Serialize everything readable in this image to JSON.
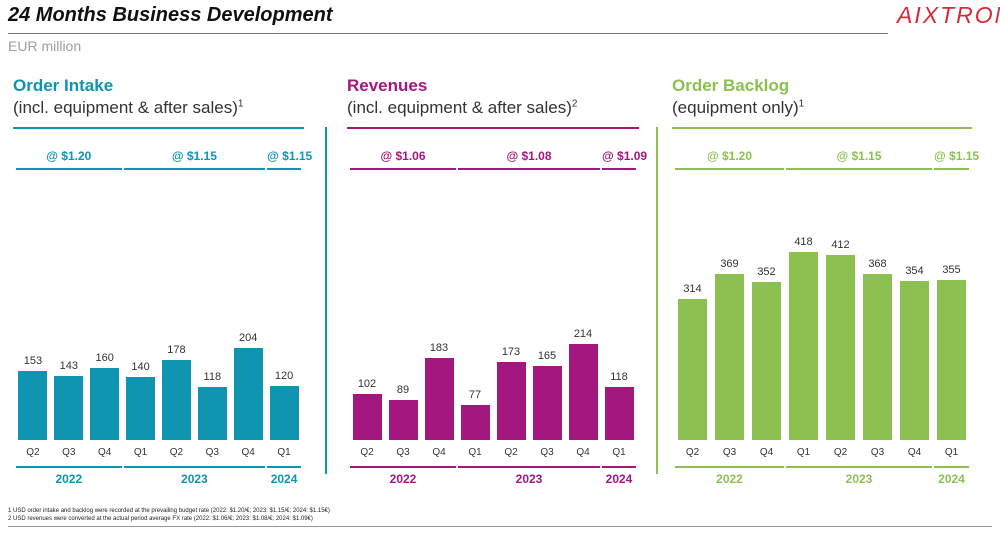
{
  "header": {
    "title": "24 Months Business Development",
    "subtitle": "EUR million",
    "logo_text": "AIXTRON"
  },
  "colors": {
    "order_intake": "#0f94b1",
    "revenues": "#a3177e",
    "order_backlog": "#8cc152",
    "logo": "#d9283a"
  },
  "chart_data": [
    {
      "type": "bar",
      "title": "Order Intake",
      "subtitle": "(incl. equipment & after sales)",
      "footnote_ref": "1",
      "categories": [
        "Q2",
        "Q3",
        "Q4",
        "Q1",
        "Q2",
        "Q3",
        "Q4",
        "Q1"
      ],
      "values": [
        153,
        143,
        160,
        140,
        178,
        118,
        204,
        120
      ],
      "value_labels": [
        "153",
        "143",
        "160",
        "140",
        "178",
        "118",
        "204",
        "120"
      ],
      "years": [
        {
          "label": "2022",
          "count": 3
        },
        {
          "label": "2023",
          "count": 4
        },
        {
          "label": "2024",
          "count": 1
        }
      ],
      "fx_rates": [
        "@ $1.20",
        "@ $1.15",
        "@ $1.15"
      ],
      "ylim": [
        0,
        420
      ]
    },
    {
      "type": "bar",
      "title": "Revenues",
      "subtitle": "(incl. equipment & after sales)",
      "footnote_ref": "2",
      "categories": [
        "Q2",
        "Q3",
        "Q4",
        "Q1",
        "Q2",
        "Q3",
        "Q4",
        "Q1"
      ],
      "values": [
        102,
        89,
        183,
        77,
        173,
        165,
        214,
        118
      ],
      "value_labels": [
        "102",
        "89",
        "183",
        "77",
        "173",
        "165",
        "214",
        "118"
      ],
      "years": [
        {
          "label": "2022",
          "count": 3
        },
        {
          "label": "2023",
          "count": 4
        },
        {
          "label": "2024",
          "count": 1
        }
      ],
      "fx_rates": [
        "@ $1.06",
        "@ $1.08",
        "@ $1.09"
      ],
      "ylim": [
        0,
        420
      ]
    },
    {
      "type": "bar",
      "title": "Order Backlog",
      "subtitle": "(equipment only)",
      "footnote_ref": "1",
      "categories": [
        "Q2",
        "Q3",
        "Q4",
        "Q1",
        "Q2",
        "Q3",
        "Q4",
        "Q1"
      ],
      "values": [
        314,
        369,
        352,
        418,
        412,
        368,
        354,
        355
      ],
      "value_labels": [
        "314",
        "369",
        "352",
        "418",
        "412",
        "368",
        "354",
        "355"
      ],
      "years": [
        {
          "label": "2022",
          "count": 3
        },
        {
          "label": "2023",
          "count": 4
        },
        {
          "label": "2024",
          "count": 1
        }
      ],
      "fx_rates": [
        "@ $1.20",
        "@ $1.15",
        "@ $1.15"
      ],
      "ylim": [
        0,
        420
      ]
    }
  ],
  "footnotes": [
    "1 USD order intake and backlog were recorded at the prevailing budget rate (2022: $1.20/€; 2023: $1.15/€; 2024: $1.15€)",
    "2 USD revenues were converted at the actual period average FX rate (2022: $1.06/€; 2023: $1.08/€; 2024: $1.09€)"
  ]
}
